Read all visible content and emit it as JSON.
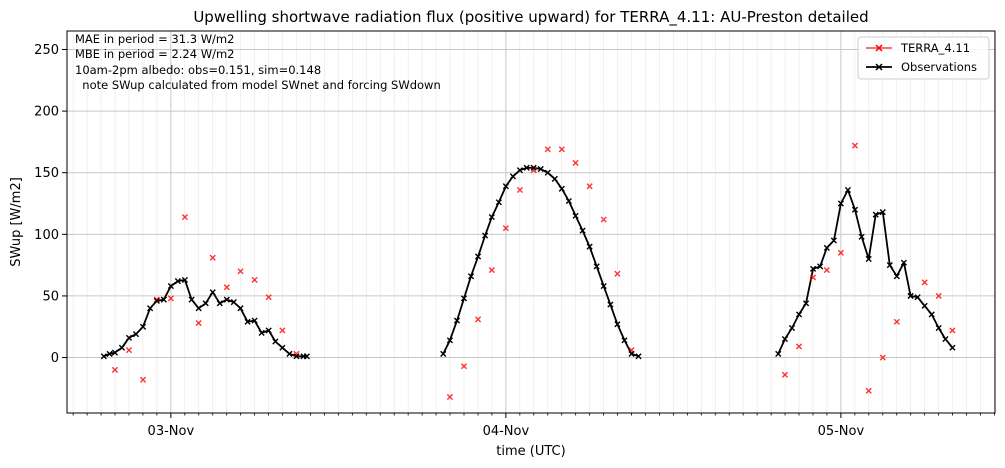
{
  "chart_data": {
    "type": "line",
    "title": "Upwelling shortwave radiation flux (positive upward) for TERRA_4.11: AU-Preston detailed",
    "xlabel": "time (UTC)",
    "ylabel": "SWup [W/m2]",
    "xlim": [
      -0.31,
      2.46
    ],
    "ylim": [
      -45,
      265
    ],
    "x_ticks": [
      {
        "value": 0,
        "label": "03-Nov"
      },
      {
        "value": 1,
        "label": "04-Nov"
      },
      {
        "value": 2,
        "label": "05-Nov"
      }
    ],
    "y_ticks": [
      0,
      50,
      100,
      150,
      200,
      250
    ],
    "grid": true,
    "legend_position": "top-right",
    "annotations": [
      "MAE in period = 31.3 W/m2",
      "MBE in period = 2.24 W/m2",
      "10am-2pm albedo: obs=0.151, sim=0.148",
      "  note SWup calculated from model SWnet and forcing SWdown"
    ],
    "series": [
      {
        "name": "TERRA_4.11",
        "color": "#ff0000",
        "style": "markers",
        "marker": "x",
        "points": [
          [
            -0.167,
            -10
          ],
          [
            -0.125,
            6
          ],
          [
            -0.083,
            -18
          ],
          [
            -0.042,
            47
          ],
          [
            0.0,
            48
          ],
          [
            0.042,
            114
          ],
          [
            0.083,
            28
          ],
          [
            0.125,
            81
          ],
          [
            0.167,
            57
          ],
          [
            0.208,
            70
          ],
          [
            0.25,
            63
          ],
          [
            0.292,
            49
          ],
          [
            0.333,
            22
          ],
          [
            0.375,
            3
          ],
          [
            0.833,
            -32
          ],
          [
            0.875,
            -7
          ],
          [
            0.917,
            31
          ],
          [
            0.958,
            71
          ],
          [
            1.0,
            105
          ],
          [
            1.042,
            136
          ],
          [
            1.083,
            152
          ],
          [
            1.125,
            169
          ],
          [
            1.167,
            169
          ],
          [
            1.208,
            158
          ],
          [
            1.25,
            139
          ],
          [
            1.292,
            112
          ],
          [
            1.333,
            68
          ],
          [
            1.375,
            6
          ],
          [
            1.833,
            -14
          ],
          [
            1.875,
            9
          ],
          [
            1.917,
            65
          ],
          [
            1.958,
            71
          ],
          [
            2.0,
            85
          ],
          [
            2.042,
            172
          ],
          [
            2.083,
            -27
          ],
          [
            2.125,
            0
          ],
          [
            2.167,
            29
          ],
          [
            2.208,
            50
          ],
          [
            2.25,
            61
          ],
          [
            2.292,
            50
          ],
          [
            2.333,
            22
          ]
        ]
      },
      {
        "name": "Observations",
        "color": "#000000",
        "style": "line-markers",
        "marker": "x",
        "segments": [
          [
            [
              -0.2,
              1
            ],
            [
              -0.183,
              3
            ],
            [
              -0.167,
              4
            ],
            [
              -0.146,
              8
            ],
            [
              -0.125,
              16
            ],
            [
              -0.104,
              19
            ],
            [
              -0.083,
              25
            ],
            [
              -0.062,
              40
            ],
            [
              -0.042,
              46
            ],
            [
              -0.021,
              47
            ],
            [
              0.0,
              58
            ],
            [
              0.021,
              62
            ],
            [
              0.042,
              63
            ],
            [
              0.062,
              47
            ],
            [
              0.083,
              40
            ],
            [
              0.104,
              44
            ],
            [
              0.125,
              53
            ],
            [
              0.146,
              44
            ],
            [
              0.167,
              47
            ],
            [
              0.188,
              45
            ],
            [
              0.208,
              40
            ],
            [
              0.229,
              29
            ],
            [
              0.25,
              30
            ],
            [
              0.271,
              20
            ],
            [
              0.292,
              22
            ],
            [
              0.312,
              13
            ],
            [
              0.333,
              8
            ],
            [
              0.354,
              3
            ],
            [
              0.375,
              1
            ],
            [
              0.396,
              1
            ],
            [
              0.406,
              1
            ]
          ],
          [
            [
              0.813,
              3
            ],
            [
              0.833,
              14
            ],
            [
              0.854,
              30
            ],
            [
              0.875,
              48
            ],
            [
              0.896,
              66
            ],
            [
              0.917,
              82
            ],
            [
              0.938,
              99
            ],
            [
              0.958,
              114
            ],
            [
              0.979,
              126
            ],
            [
              1.0,
              139
            ],
            [
              1.021,
              147
            ],
            [
              1.042,
              152
            ],
            [
              1.062,
              154
            ],
            [
              1.083,
              154
            ],
            [
              1.104,
              153
            ],
            [
              1.125,
              150
            ],
            [
              1.146,
              145
            ],
            [
              1.167,
              137
            ],
            [
              1.188,
              127
            ],
            [
              1.208,
              115
            ],
            [
              1.229,
              103
            ],
            [
              1.25,
              90
            ],
            [
              1.271,
              74
            ],
            [
              1.292,
              58
            ],
            [
              1.312,
              43
            ],
            [
              1.333,
              27
            ],
            [
              1.354,
              14
            ],
            [
              1.375,
              3
            ],
            [
              1.396,
              1
            ]
          ],
          [
            [
              1.813,
              3
            ],
            [
              1.833,
              15
            ],
            [
              1.854,
              24
            ],
            [
              1.875,
              35
            ],
            [
              1.896,
              44
            ],
            [
              1.917,
              72
            ],
            [
              1.938,
              74
            ],
            [
              1.958,
              89
            ],
            [
              1.979,
              95
            ],
            [
              2.0,
              125
            ],
            [
              2.021,
              136
            ],
            [
              2.042,
              120
            ],
            [
              2.062,
              98
            ],
            [
              2.083,
              80
            ],
            [
              2.104,
              116
            ],
            [
              2.125,
              118
            ],
            [
              2.146,
              75
            ],
            [
              2.167,
              66
            ],
            [
              2.188,
              77
            ],
            [
              2.208,
              50
            ],
            [
              2.229,
              49
            ],
            [
              2.25,
              42
            ],
            [
              2.271,
              35
            ],
            [
              2.292,
              24
            ],
            [
              2.312,
              15
            ],
            [
              2.333,
              8
            ]
          ]
        ]
      }
    ]
  }
}
